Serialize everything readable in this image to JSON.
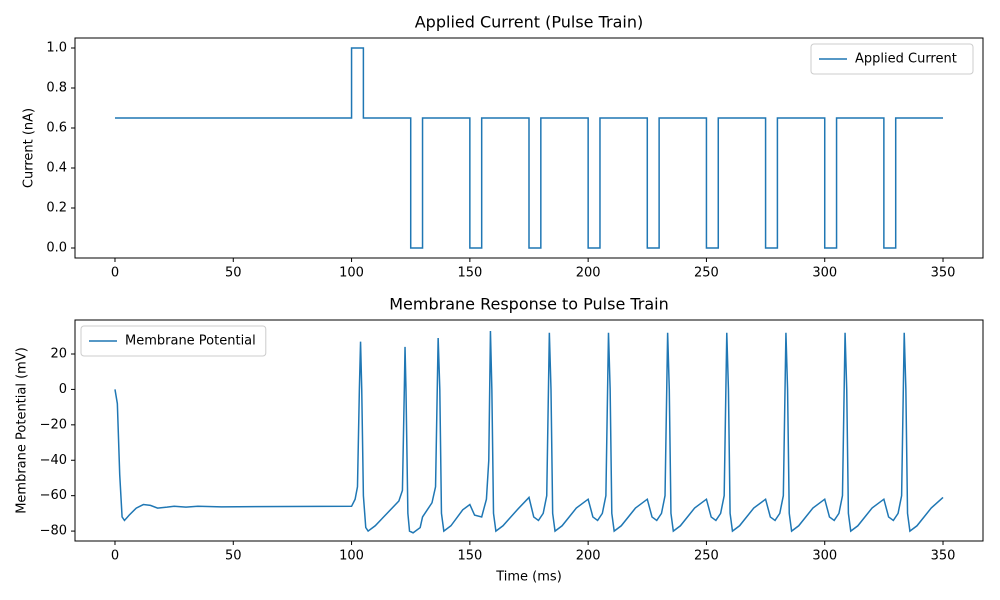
{
  "chart_data": [
    {
      "type": "line",
      "title": "Applied Current (Pulse Train)",
      "y_label": "Current (nA)",
      "x": [
        0,
        100,
        100,
        105,
        105,
        125,
        125,
        130,
        130,
        150,
        150,
        155,
        155,
        175,
        175,
        180,
        180,
        200,
        200,
        205,
        205,
        225,
        225,
        230,
        230,
        250,
        250,
        255,
        255,
        275,
        275,
        280,
        280,
        300,
        300,
        305,
        305,
        325,
        325,
        330,
        330,
        350
      ],
      "series": [
        {
          "name": "Applied Current",
          "color": "#1f77b4",
          "values": [
            0.65,
            0.65,
            1,
            1,
            0.65,
            0.65,
            0,
            0,
            0.65,
            0.65,
            0,
            0,
            0.65,
            0.65,
            0,
            0,
            0.65,
            0.65,
            0,
            0,
            0.65,
            0.65,
            0,
            0,
            0.65,
            0.65,
            0,
            0,
            0.65,
            0.65,
            0,
            0,
            0.65,
            0.65,
            0,
            0,
            0.65,
            0.65,
            0,
            0,
            0.65,
            0.65
          ]
        }
      ],
      "xlim": [
        -16.9,
        366.9
      ],
      "xticks": [
        0,
        50,
        100,
        150,
        200,
        250,
        300,
        350
      ],
      "ylim": [
        -0.05,
        1.05
      ],
      "yticks": [
        {
          "value": 0,
          "label": "0.0"
        },
        {
          "value": 0.2,
          "label": "0.2"
        },
        {
          "value": 0.4,
          "label": "0.4"
        },
        {
          "value": 0.6,
          "label": "0.6"
        },
        {
          "value": 0.8,
          "label": "0.8"
        },
        {
          "value": 1,
          "label": "1.0"
        }
      ],
      "legend": "upper right"
    },
    {
      "type": "line",
      "title": "Membrane Response to Pulse Train",
      "x_label": "Time (ms)",
      "y_label": "Membrane Potential (mV)",
      "x": [
        0,
        1,
        2,
        3,
        4,
        6,
        9,
        12,
        15,
        18,
        22,
        25,
        30,
        35,
        45,
        100,
        101.5,
        102.5,
        103.3,
        103.8,
        104.3,
        105,
        106,
        107,
        110,
        115,
        120,
        121.5,
        122.3,
        122.6,
        123,
        123.8,
        124.5,
        126,
        129,
        130,
        134,
        135.5,
        136.6,
        137.3,
        138,
        139,
        142,
        147,
        150,
        152,
        155,
        157,
        158,
        158.7,
        159.3,
        160,
        161,
        164,
        170,
        175,
        177,
        179,
        181,
        182.5,
        183.6,
        184.3,
        185,
        186,
        189,
        195,
        200,
        202,
        204,
        206,
        207.5,
        208.6,
        209.3,
        210,
        211,
        214,
        220,
        225,
        227,
        229,
        231,
        232.5,
        233.6,
        234.3,
        235,
        236,
        239,
        245,
        250,
        252,
        254,
        256,
        257.5,
        258.6,
        259.3,
        260,
        261,
        264,
        270,
        275,
        277,
        279,
        281,
        282.5,
        283.6,
        284.3,
        285,
        286,
        289,
        295,
        300,
        302,
        304,
        306,
        307.5,
        308.6,
        309.3,
        310,
        311,
        314,
        320,
        325,
        327,
        329,
        331,
        332.5,
        333.6,
        334.3,
        335,
        336,
        339,
        345,
        350
      ],
      "series": [
        {
          "name": "Membrane Potential",
          "color": "#1f77b4",
          "values": [
            0,
            -8,
            -48,
            -72,
            -74,
            -71,
            -67,
            -65,
            -65.5,
            -67,
            -66.5,
            -66,
            -66.5,
            -66,
            -66.3,
            -66,
            -62,
            -55,
            0,
            27,
            0,
            -60,
            -78,
            -80,
            -77,
            -70,
            -63,
            -57,
            0,
            24,
            0,
            -70,
            -80,
            -81,
            -78,
            -72,
            -64,
            -55,
            29,
            0,
            -70,
            -80,
            -77,
            -68,
            -65,
            -71,
            -72,
            -62,
            -40,
            33,
            0,
            -70,
            -80,
            -77,
            -68,
            -61,
            -72,
            -74,
            -70,
            -60,
            32,
            0,
            -70,
            -80,
            -77,
            -67,
            -62,
            -72,
            -74,
            -70,
            -60,
            32,
            0,
            -70,
            -80,
            -77,
            -67,
            -62,
            -72,
            -74,
            -70,
            -60,
            32,
            0,
            -70,
            -80,
            -77,
            -67,
            -62,
            -72,
            -74,
            -70,
            -60,
            32,
            0,
            -70,
            -80,
            -77,
            -67,
            -62,
            -72,
            -74,
            -70,
            -60,
            32,
            0,
            -70,
            -80,
            -77,
            -67,
            -62,
            -72,
            -74,
            -70,
            -60,
            32,
            0,
            -70,
            -80,
            -77,
            -67,
            -62,
            -72,
            -74,
            -70,
            -60,
            32,
            0,
            -70,
            -80,
            -77,
            -67,
            -61
          ]
        }
      ],
      "xlim": [
        -16.9,
        366.9
      ],
      "xticks": [
        0,
        50,
        100,
        150,
        200,
        250,
        300,
        350
      ],
      "ylim": [
        -85.6,
        39.2
      ],
      "yticks": [
        {
          "value": -80,
          "label": "−80"
        },
        {
          "value": -60,
          "label": "−60"
        },
        {
          "value": -40,
          "label": "−40"
        },
        {
          "value": -20,
          "label": "−20"
        },
        {
          "value": 0,
          "label": "0"
        },
        {
          "value": 20,
          "label": "20"
        }
      ],
      "legend": "upper left"
    }
  ]
}
